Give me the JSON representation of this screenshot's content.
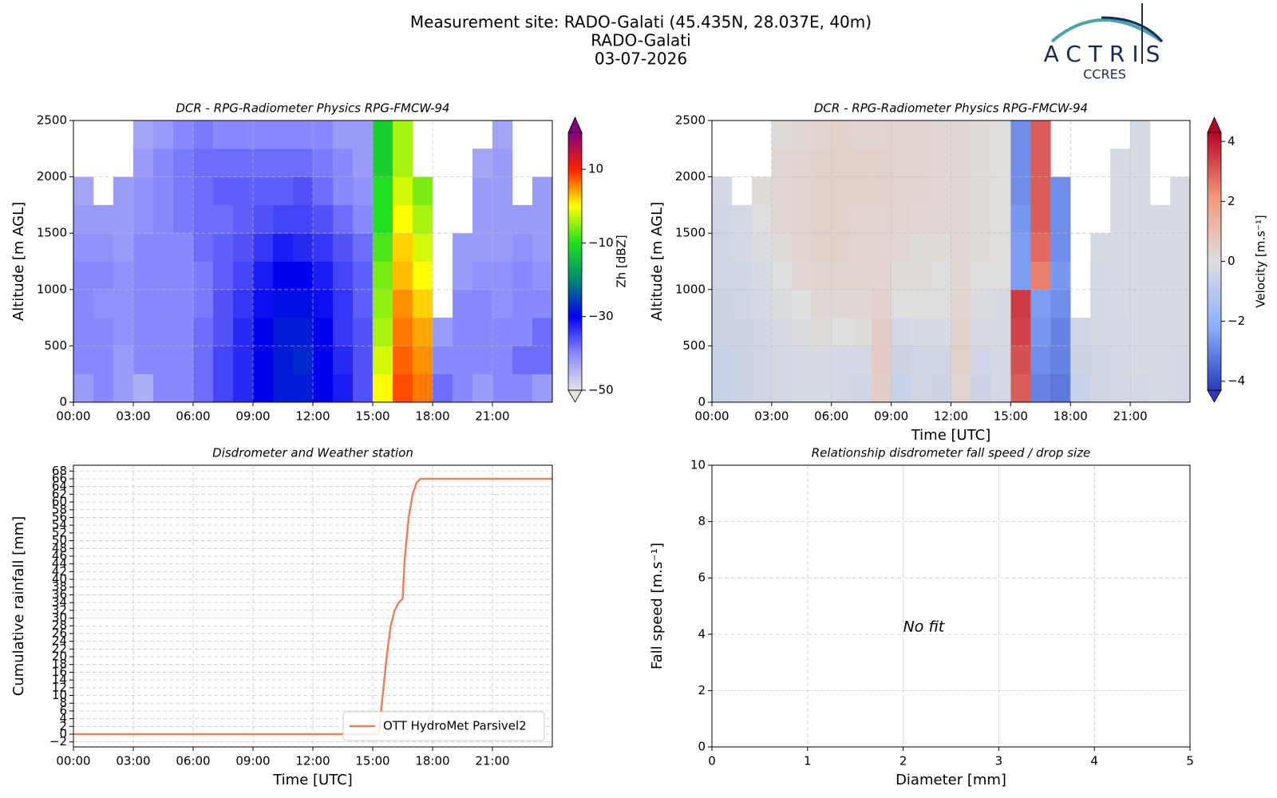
{
  "header": {
    "title": [
      "Measurement site: RADO-Galati (45.435N, 28.037E, 40m)",
      "RADO-Galati",
      "03-07-2026"
    ],
    "logo": [
      "ACTRIS",
      "CCRES"
    ]
  },
  "chart_data": [
    {
      "type": "heatmap",
      "title": "DCR - RPG-Radiometer Physics RPG-FMCW-94",
      "ylabel": "Altitude [m AGL]",
      "grid": true,
      "xlim": [
        0,
        24
      ],
      "ylim": [
        0,
        2500
      ],
      "xticks": [
        {
          "value": 0,
          "label": "00:00"
        },
        {
          "value": 3,
          "label": "03:00"
        },
        {
          "value": 6,
          "label": "06:00"
        },
        {
          "value": 9,
          "label": "09:00"
        },
        {
          "value": 12,
          "label": "12:00"
        },
        {
          "value": 15,
          "label": "15:00"
        },
        {
          "value": 18,
          "label": "18:00"
        },
        {
          "value": 21,
          "label": "21:00"
        }
      ],
      "yticks": [
        0,
        500,
        1000,
        1500,
        2000,
        2500
      ],
      "x": [
        0,
        1,
        2,
        3,
        4,
        5,
        6,
        7,
        8,
        9,
        10,
        11,
        12,
        13,
        14,
        15,
        16,
        17,
        18,
        19,
        20,
        21,
        22,
        23,
        24
      ],
      "y": [
        0,
        250,
        500,
        750,
        1000,
        1250,
        1500,
        1750,
        2000,
        2250,
        2500
      ],
      "z": [
        [
          -42,
          -40,
          -42,
          -44,
          -40,
          -40,
          -38,
          -35,
          -33,
          -30,
          -28,
          -28,
          -30,
          -32,
          -36,
          0,
          8,
          6,
          -38,
          -40,
          -42,
          -40,
          -40,
          -42
        ],
        [
          -40,
          -40,
          -42,
          -40,
          -40,
          -40,
          -38,
          -35,
          -33,
          -30,
          -28,
          -27,
          -30,
          -33,
          -36,
          -2,
          7,
          5,
          -40,
          -40,
          -40,
          -40,
          -38,
          -38
        ],
        [
          -40,
          -40,
          -41,
          -40,
          -40,
          -40,
          -38,
          -36,
          -33,
          -30,
          -28,
          -28,
          -30,
          -34,
          -36,
          -4,
          6,
          4,
          -42,
          -40,
          -40,
          -40,
          -40,
          -38
        ],
        [
          -40,
          -41,
          -41,
          -40,
          -40,
          -40,
          -39,
          -36,
          -34,
          -31,
          -29,
          -29,
          -31,
          -34,
          -37,
          -5,
          5,
          2,
          null,
          -40,
          -40,
          -41,
          -40,
          -40
        ],
        [
          -40,
          -40,
          -41,
          -40,
          -40,
          -40,
          -39,
          -37,
          -35,
          -32,
          -30,
          -30,
          -32,
          -35,
          -37,
          -6,
          3,
          0,
          null,
          -42,
          -41,
          -41,
          -40,
          -41
        ],
        [
          -41,
          -41,
          -42,
          -40,
          -40,
          -40,
          -38,
          -37,
          -36,
          -34,
          -32,
          -33,
          -34,
          -36,
          -38,
          -8,
          2,
          -2,
          null,
          -42,
          -42,
          -42,
          -41,
          -42
        ],
        [
          -42,
          -42,
          -42,
          -41,
          -40,
          -39,
          -38,
          -38,
          -37,
          -36,
          -35,
          -35,
          -36,
          -38,
          -40,
          -10,
          0,
          -4,
          null,
          null,
          -42,
          -42,
          -42,
          -42
        ],
        [
          -43,
          null,
          -42,
          -41,
          -40,
          -39,
          -38,
          -37,
          -37,
          -37,
          -37,
          -36,
          -38,
          -40,
          -41,
          -10,
          -2,
          -6,
          null,
          null,
          -42,
          -42,
          null,
          -42
        ],
        [
          null,
          null,
          null,
          -42,
          -40,
          -39,
          -38,
          -38,
          -38,
          -38,
          -38,
          -38,
          -39,
          -40,
          -42,
          -12,
          -4,
          null,
          null,
          null,
          -43,
          -42,
          null,
          null
        ],
        [
          null,
          null,
          null,
          -43,
          -42,
          -40,
          -39,
          -40,
          -40,
          -40,
          -40,
          -40,
          -40,
          -42,
          -42,
          -12,
          -4,
          null,
          null,
          null,
          null,
          -43,
          null,
          null
        ]
      ],
      "colorbar": {
        "label": "Zh [dBZ]",
        "lim": [
          -50,
          20
        ],
        "ticks": [
          {
            "value": -50,
            "label": "−50"
          },
          {
            "value": -30,
            "label": "−30"
          },
          {
            "value": -10,
            "label": "−10"
          },
          10
        ],
        "colors": [
          "#e4e4e4",
          "#8888ff",
          "#0000f0",
          "#008a70",
          "#20e020",
          "#ffff00",
          "#ff2000",
          "#800080"
        ]
      }
    },
    {
      "type": "heatmap",
      "title": "DCR - RPG-Radiometer Physics RPG-FMCW-94",
      "ylabel": "Altitude [m AGL]",
      "xlabel": "Time [UTC]",
      "grid": true,
      "xlim": [
        0,
        24
      ],
      "ylim": [
        0,
        2500
      ],
      "xticks": [
        {
          "value": 0,
          "label": "00:00"
        },
        {
          "value": 3,
          "label": "03:00"
        },
        {
          "value": 6,
          "label": "06:00"
        },
        {
          "value": 9,
          "label": "09:00"
        },
        {
          "value": 12,
          "label": "12:00"
        },
        {
          "value": 15,
          "label": "15:00"
        },
        {
          "value": 18,
          "label": "18:00"
        },
        {
          "value": 21,
          "label": "21:00"
        }
      ],
      "yticks": [
        0,
        500,
        1000,
        1500,
        2000,
        2500
      ],
      "x": [
        0,
        1,
        2,
        3,
        4,
        5,
        6,
        7,
        8,
        9,
        10,
        11,
        12,
        13,
        14,
        15,
        16,
        17,
        18,
        19,
        20,
        21,
        22,
        23,
        24
      ],
      "y": [
        0,
        250,
        500,
        750,
        1000,
        1250,
        1500,
        1750,
        2000,
        2250,
        2500
      ],
      "z": [
        [
          -0.6,
          -0.5,
          -0.4,
          -0.3,
          -0.2,
          -0.2,
          -0.3,
          -0.4,
          0.5,
          -0.6,
          -0.4,
          -0.5,
          0.3,
          -0.5,
          -0.3,
          3,
          -3,
          -3.2,
          -0.6,
          -0.4,
          -0.3,
          -0.3,
          -0.2,
          -0.3
        ],
        [
          -0.6,
          -0.5,
          -0.4,
          -0.3,
          -0.2,
          -0.2,
          -0.3,
          -0.3,
          0.6,
          -0.5,
          -0.4,
          -0.4,
          0.4,
          -0.4,
          -0.3,
          3.2,
          -2.8,
          -3,
          -0.5,
          -0.4,
          -0.3,
          -0.2,
          -0.2,
          -0.3
        ],
        [
          -0.5,
          -0.5,
          -0.4,
          -0.2,
          -0.1,
          0.1,
          0,
          0.1,
          0.5,
          -0.3,
          -0.2,
          -0.2,
          0.4,
          -0.2,
          -0.2,
          3.4,
          -2.6,
          -3,
          -0.4,
          -0.3,
          -0.3,
          -0.2,
          -0.2,
          -0.2
        ],
        [
          -0.5,
          -0.4,
          -0.3,
          -0.1,
          0,
          0.2,
          0.2,
          0.2,
          0.4,
          0,
          0,
          0,
          0.3,
          -0.1,
          -0.2,
          3.5,
          -2.5,
          -2.8,
          null,
          -0.3,
          -0.2,
          -0.2,
          -0.2,
          -0.2
        ],
        [
          -0.4,
          -0.4,
          -0.2,
          0,
          0.2,
          0.3,
          0.3,
          0.3,
          0.3,
          0.1,
          0.1,
          0,
          0.2,
          0,
          0,
          -2.5,
          2.5,
          -2.6,
          null,
          -0.3,
          -0.2,
          -0.2,
          -0.2,
          -0.2
        ],
        [
          -0.4,
          -0.3,
          -0.1,
          0.1,
          0.3,
          0.4,
          0.4,
          0.3,
          0.3,
          0.2,
          0.1,
          0.1,
          0.2,
          0.1,
          0,
          -2.5,
          2.8,
          -2.8,
          null,
          -0.2,
          -0.2,
          -0.2,
          -0.2,
          -0.2
        ],
        [
          -0.4,
          -0.3,
          0,
          0.2,
          0.3,
          0.4,
          0.4,
          0.3,
          0.3,
          0.3,
          0.2,
          0.2,
          0.2,
          0.1,
          0,
          -2.6,
          3,
          -2.8,
          null,
          null,
          -0.2,
          -0.2,
          -0.2,
          -0.2
        ],
        [
          -0.3,
          null,
          0.1,
          0.2,
          0.3,
          0.4,
          0.4,
          0.4,
          0.4,
          0.3,
          0.3,
          0.2,
          0.2,
          0.1,
          0,
          -2.8,
          3,
          -2.8,
          null,
          null,
          -0.2,
          -0.2,
          null,
          -0.2
        ],
        [
          null,
          null,
          null,
          0.2,
          0.3,
          0.4,
          0.4,
          0.4,
          0.4,
          0.3,
          0.3,
          0.2,
          0.2,
          0.1,
          0,
          -2.8,
          3,
          null,
          null,
          null,
          -0.2,
          -0.2,
          null,
          null
        ],
        [
          null,
          null,
          null,
          0.1,
          0.2,
          0.3,
          0.4,
          0.3,
          0.3,
          0.3,
          0.3,
          0.2,
          0.2,
          0.1,
          0,
          -2.8,
          3,
          null,
          null,
          null,
          null,
          -0.2,
          null,
          null
        ]
      ],
      "colorbar": {
        "label": "Velocity [m.s⁻¹]",
        "lim": [
          -4.3,
          4.3
        ],
        "ticks": [
          {
            "value": -4,
            "label": "−4"
          },
          {
            "value": -2,
            "label": "−2"
          },
          0,
          2,
          4
        ],
        "colors": [
          "#2a3cb8",
          "#8db0fe",
          "#dedede",
          "#f4987a",
          "#b40426"
        ]
      }
    },
    {
      "type": "line",
      "title": "Disdrometer and Weather station",
      "ylabel": "Cumulative rainfall [mm]",
      "xlabel": "Time [UTC]",
      "grid": true,
      "legend": "lower right",
      "xlim": [
        0,
        24
      ],
      "ylim": [
        -3.3,
        69.5
      ],
      "xticks": [
        {
          "value": 0,
          "label": "00:00"
        },
        {
          "value": 3,
          "label": "03:00"
        },
        {
          "value": 6,
          "label": "06:00"
        },
        {
          "value": 9,
          "label": "09:00"
        },
        {
          "value": 12,
          "label": "12:00"
        },
        {
          "value": 15,
          "label": "15:00"
        },
        {
          "value": 18,
          "label": "18:00"
        },
        {
          "value": 21,
          "label": "21:00"
        }
      ],
      "yticks": [
        {
          "value": -2,
          "label": "−2"
        },
        0,
        2,
        4,
        6,
        8,
        10,
        12,
        14,
        16,
        18,
        20,
        22,
        24,
        26,
        28,
        30,
        32,
        34,
        36,
        38,
        40,
        42,
        44,
        46,
        48,
        50,
        52,
        54,
        56,
        58,
        60,
        62,
        64,
        66,
        68
      ],
      "x": [
        0,
        15.3,
        15.5,
        15.7,
        15.9,
        16.1,
        16.3,
        16.5,
        16.6,
        16.8,
        17.0,
        17.2,
        17.4,
        24
      ],
      "series": [
        {
          "name": "OTT HydroMet Parsivel2",
          "color": "#e9825c",
          "values": [
            0,
            0,
            10,
            20,
            28,
            32,
            34,
            35,
            45,
            56,
            62,
            65,
            66,
            66
          ]
        }
      ]
    },
    {
      "type": "scatter",
      "title": "Relationship disdrometer fall speed / drop size",
      "ylabel": "Fall speed [m.s⁻¹]",
      "xlabel": "Diameter [mm]",
      "grid": true,
      "xlim": [
        0,
        5
      ],
      "ylim": [
        0,
        10
      ],
      "xticks": [
        0,
        1,
        2,
        3,
        4,
        5
      ],
      "yticks": [
        0,
        2,
        4,
        6,
        8,
        10
      ],
      "annotation": "No fit",
      "series": []
    }
  ]
}
